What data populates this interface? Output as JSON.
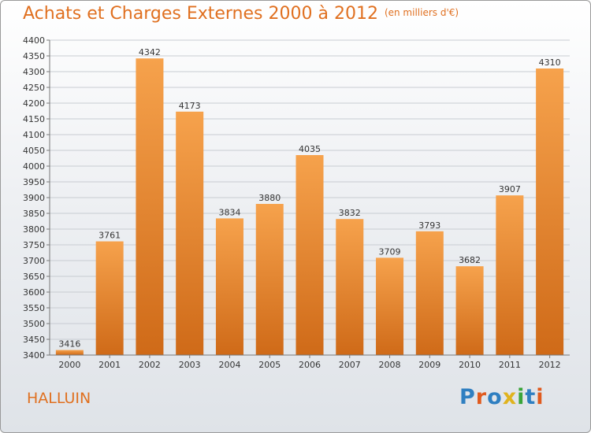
{
  "header": {
    "title": "Achats et Charges Externes 2000 à 2012",
    "unit": "(en milliers d'€)"
  },
  "city": "HALLUIN",
  "logo": {
    "text": "Proxiti",
    "colors": [
      "#2f7fc1",
      "#e05a1e",
      "#2f7fc1",
      "#e0b31e",
      "#3aa53a",
      "#2f7fc1",
      "#e05a1e"
    ]
  },
  "colors": {
    "accent": "#e07020",
    "bar_top": "#f6a24c",
    "bar_bottom": "#cf6a18"
  },
  "chart_data": {
    "type": "bar",
    "categories": [
      "2000",
      "2001",
      "2002",
      "2003",
      "2004",
      "2005",
      "2006",
      "2007",
      "2008",
      "2009",
      "2010",
      "2011",
      "2012"
    ],
    "values": [
      3416,
      3761,
      4342,
      4173,
      3834,
      3880,
      4035,
      3832,
      3709,
      3793,
      3682,
      3907,
      4310
    ],
    "title": "Achats et Charges Externes 2000 à 2012",
    "ylabel": "",
    "xlabel": "",
    "ylim": [
      3400,
      4400
    ],
    "yticks": [
      3400,
      3450,
      3500,
      3550,
      3600,
      3650,
      3700,
      3750,
      3800,
      3850,
      3900,
      3950,
      4000,
      4050,
      4100,
      4150,
      4200,
      4250,
      4300,
      4350,
      4400
    ],
    "grid": true,
    "data_labels": true
  }
}
